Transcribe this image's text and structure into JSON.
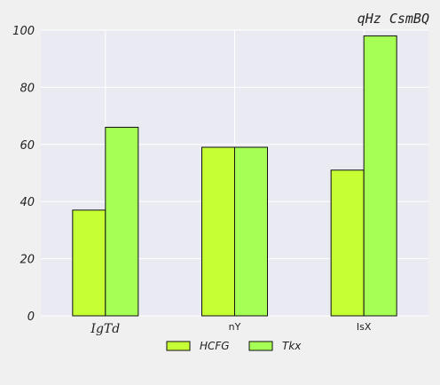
{
  "chart_data": {
    "type": "bar",
    "title": "qHz  CsmBQ",
    "xlabel": "",
    "ylabel": "",
    "categories": [
      "IgTd",
      "nY",
      "IsX"
    ],
    "series": [
      {
        "name": "HCFG",
        "values": [
          37,
          59,
          51
        ],
        "color": "#c6ff33"
      },
      {
        "name": "Tkx",
        "values": [
          66,
          59,
          98
        ],
        "color": "#a6ff55"
      }
    ],
    "ylim": [
      0,
      100
    ],
    "yticks": [
      0,
      20,
      40,
      60,
      80,
      100
    ],
    "grid": true,
    "legend": "bottom-center",
    "background": "#eaeaf2"
  }
}
